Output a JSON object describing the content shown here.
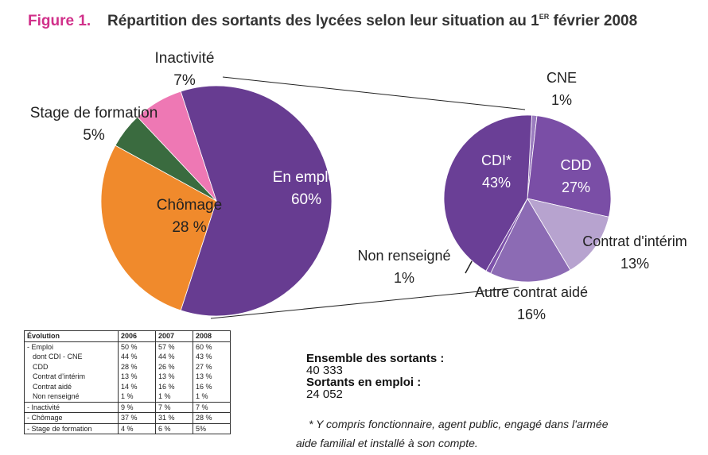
{
  "figure_label": "Figure 1.",
  "title": "Répartition des sortants des lycées selon leur situation au 1",
  "title_sup": "ER",
  "title_end": " février 2008",
  "chart_data": [
    {
      "type": "pie",
      "labels": [
        "En emploi",
        "Chômage",
        "Stage de formation",
        "Inactivité"
      ],
      "values": [
        60,
        28,
        5,
        7
      ],
      "value_labels": [
        "60%",
        "28 %",
        "5%",
        "7%"
      ],
      "colors": [
        "#673c91",
        "#f08a2c",
        "#3a6b3f",
        "#ee78b4"
      ]
    },
    {
      "type": "pie",
      "labels": [
        "CNE",
        "CDD",
        "Contrat d'intérim",
        "Autre contrat aidé",
        "Non renseigné",
        "CDI*"
      ],
      "values": [
        1,
        27,
        13,
        16,
        1,
        43
      ],
      "value_labels": [
        "1%",
        "27%",
        "13%",
        "16%",
        "1%",
        "43%"
      ],
      "colors": [
        "#9b7dbf",
        "#7a4ea6",
        "#b7a3cf",
        "#8c6bb4",
        "#7d52aa",
        "#6a3f96"
      ]
    }
  ],
  "table": {
    "header": [
      "Évolution",
      "2006",
      "2007",
      "2008"
    ],
    "rows": [
      [
        "- Emploi",
        "50 %",
        "57 %",
        "60 %"
      ],
      [
        "dont CDI - CNE",
        "44 %",
        "44 %",
        "43 %"
      ],
      [
        "CDD",
        "28 %",
        "26 %",
        "27 %"
      ],
      [
        "Contrat d’intérim",
        "13 %",
        "13 %",
        "13 %"
      ],
      [
        "Contrat aidé",
        "14 %",
        "16 %",
        "16 %"
      ],
      [
        "Non renseigné",
        "1 %",
        "1 %",
        "1 %"
      ],
      [
        "- Inactivité",
        "9 %",
        "7 %",
        "7 %"
      ],
      [
        "- Chômage",
        "37 %",
        "31 %",
        "28 %"
      ],
      [
        "- Stage de formation",
        "4 %",
        "6 %",
        "5%"
      ]
    ]
  },
  "summary": {
    "label1": "Ensemble des sortants :",
    "value1": "40 333",
    "label2": "Sortants en emploi :",
    "value2": "24 052"
  },
  "footnote": [
    "* Y compris fonctionnaire, agent public, engagé dans l'armée",
    "aide familial et installé à son compte."
  ]
}
